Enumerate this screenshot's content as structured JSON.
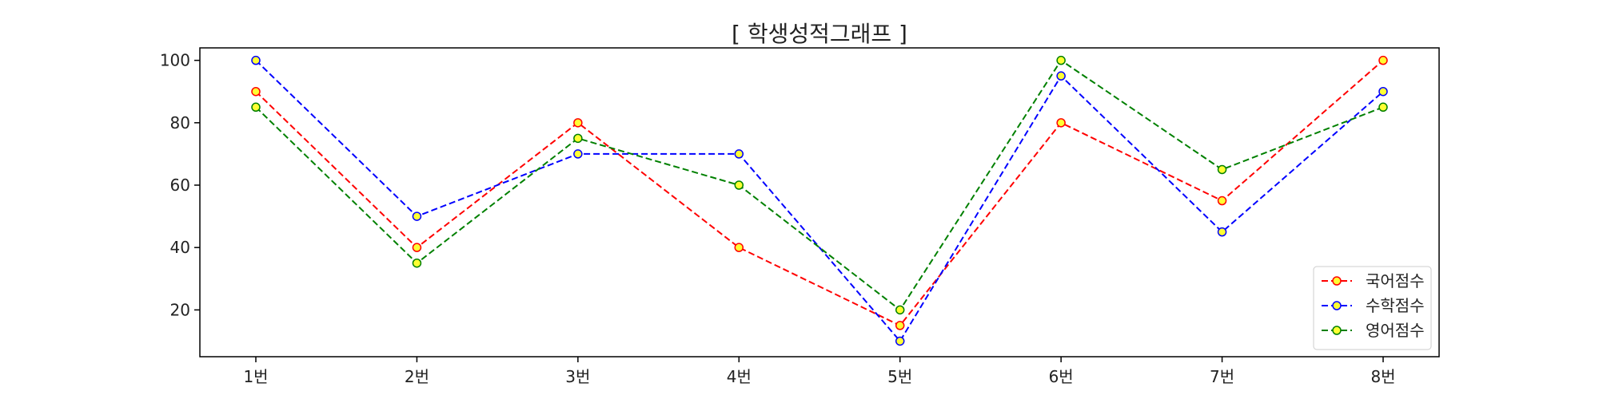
{
  "chart_data": {
    "type": "line",
    "title": "[ 학생성적그래프 ]",
    "xlabel": "",
    "ylabel": "",
    "categories": [
      "1번",
      "2번",
      "3번",
      "4번",
      "5번",
      "6번",
      "7번",
      "8번"
    ],
    "ylim": [
      5,
      104
    ],
    "yticks": [
      20,
      40,
      60,
      80,
      100
    ],
    "grid": false,
    "legend_position": "lower-right",
    "marker_fill": "#ffff33",
    "series": [
      {
        "name": "국어점수",
        "color": "#ff0000",
        "values": [
          90,
          40,
          80,
          40,
          15,
          80,
          55,
          100
        ]
      },
      {
        "name": "수학점수",
        "color": "#0000ff",
        "values": [
          100,
          50,
          70,
          70,
          10,
          95,
          45,
          90
        ]
      },
      {
        "name": "영어점수",
        "color": "#008000",
        "values": [
          85,
          35,
          75,
          60,
          20,
          100,
          65,
          85
        ]
      }
    ]
  }
}
